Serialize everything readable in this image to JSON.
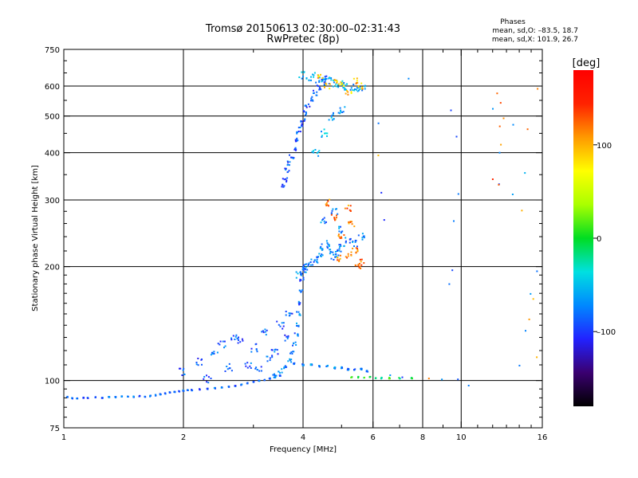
{
  "chart_data": {
    "type": "scatter",
    "title": "Tromsø 20150613 02:30:00–02:31:43",
    "subtitle": "RwPretec (8p)",
    "header": {
      "title": "Phases",
      "line1": "mean, sd,O: –83.5, 18.7",
      "line2": "mean, sd,X: 101.9, 26.7"
    },
    "xlabel": "Frequency [MHz]",
    "ylabel": "Stationary phase Virtual Height [km]",
    "x_scale": "log",
    "y_scale": "log",
    "xlim": [
      1,
      16
    ],
    "ylim": [
      75,
      750
    ],
    "x_ticks": [
      {
        "value": 1,
        "label": "1"
      },
      {
        "value": 2,
        "label": "2"
      },
      {
        "value": 4,
        "label": "4"
      },
      {
        "value": 6,
        "label": "6"
      },
      {
        "value": 8,
        "label": "8"
      },
      {
        "value": 10,
        "label": "10"
      },
      {
        "value": 16,
        "label": "16"
      }
    ],
    "x_minor": [
      3,
      5,
      7,
      9,
      11,
      12,
      13,
      14,
      15
    ],
    "x_grid": [
      2,
      4,
      6,
      8,
      10
    ],
    "y_ticks": [
      {
        "value": 75,
        "label": "75"
      },
      {
        "value": 100,
        "label": "100"
      },
      {
        "value": 200,
        "label": "200"
      },
      {
        "value": 300,
        "label": "300"
      },
      {
        "value": 400,
        "label": "400"
      },
      {
        "value": 500,
        "label": "500"
      },
      {
        "value": 600,
        "label": "600"
      },
      {
        "value": 750,
        "label": "750"
      }
    ],
    "y_grid": [
      100,
      200,
      300,
      400,
      500,
      600
    ],
    "grid": true,
    "colorbar": {
      "label": "[deg]",
      "range": [
        -180,
        180
      ],
      "ticks": [
        {
          "value": 100,
          "label": "100"
        },
        {
          "value": 0,
          "label": "0"
        },
        {
          "value": -100,
          "label": "–100"
        }
      ],
      "stops": [
        "#000000",
        "#3a0070",
        "#2222ff",
        "#0088ff",
        "#00e0e0",
        "#00dd22",
        "#aaff00",
        "#ffff00",
        "#ff9900",
        "#ff2200",
        "#ff0000"
      ]
    },
    "point_groups": [
      {
        "name": "E-layer trace",
        "points": [
          [
            1.02,
            90.5
          ],
          [
            1.05,
            89.8
          ],
          [
            1.08,
            89.6
          ],
          [
            1.12,
            90.0
          ],
          [
            1.15,
            89.9
          ],
          [
            1.2,
            90.3
          ],
          [
            1.25,
            90.1
          ],
          [
            1.3,
            90.5
          ],
          [
            1.35,
            90.4
          ],
          [
            1.4,
            90.8
          ],
          [
            1.45,
            90.5
          ],
          [
            1.5,
            90.6
          ],
          [
            1.55,
            90.9
          ],
          [
            1.6,
            90.6
          ],
          [
            1.65,
            91.0
          ],
          [
            1.7,
            91.4
          ],
          [
            1.75,
            92.0
          ],
          [
            1.8,
            92.4
          ],
          [
            1.85,
            93.1
          ],
          [
            1.9,
            93.3
          ],
          [
            1.95,
            93.6
          ],
          [
            2.0,
            94.0
          ],
          [
            2.05,
            94.2
          ],
          [
            2.1,
            94.3
          ],
          [
            2.2,
            94.8
          ],
          [
            2.3,
            95.0
          ],
          [
            2.4,
            95.4
          ],
          [
            2.5,
            95.8
          ],
          [
            2.6,
            96.3
          ],
          [
            2.7,
            96.8
          ],
          [
            2.8,
            97.5
          ],
          [
            2.9,
            98.5
          ],
          [
            3.0,
            99.2
          ],
          [
            3.1,
            99.8
          ],
          [
            3.2,
            100.4
          ],
          [
            3.3,
            101.2
          ],
          [
            3.4,
            102.0
          ],
          [
            3.5,
            103.0
          ]
        ],
        "phase": -85,
        "count": 5,
        "spread": 0.6
      },
      {
        "name": "rising trace to F layer",
        "points": [
          [
            3.4,
            103
          ],
          [
            3.5,
            106
          ],
          [
            3.6,
            109
          ],
          [
            3.7,
            113
          ],
          [
            3.75,
            118
          ],
          [
            3.8,
            125
          ],
          [
            3.85,
            132
          ],
          [
            3.88,
            140
          ],
          [
            3.9,
            150
          ],
          [
            3.93,
            160
          ],
          [
            3.95,
            172
          ],
          [
            3.97,
            185
          ],
          [
            4.0,
            200
          ]
        ],
        "phase": -80,
        "count": 5,
        "spread": 2.5
      },
      {
        "name": "scattered echoes 2-4 MHz",
        "points": [
          [
            2.0,
            105
          ],
          [
            2.2,
            112
          ],
          [
            2.4,
            118
          ],
          [
            2.5,
            125
          ],
          [
            2.7,
            130
          ],
          [
            2.8,
            128
          ],
          [
            3.0,
            122
          ],
          [
            3.2,
            135
          ],
          [
            3.5,
            140
          ],
          [
            3.7,
            150
          ],
          [
            2.6,
            108
          ],
          [
            3.3,
            115
          ],
          [
            3.6,
            130
          ],
          [
            2.3,
            101
          ],
          [
            2.9,
            110
          ],
          [
            3.1,
            108
          ],
          [
            3.4,
            120
          ]
        ],
        "phase": -88,
        "count": 7,
        "spread": 5
      },
      {
        "name": "echoes near 110 km",
        "points": [
          [
            3.8,
            111
          ],
          [
            4.0,
            110
          ],
          [
            4.2,
            110
          ],
          [
            4.4,
            109
          ],
          [
            4.6,
            109
          ],
          [
            4.8,
            108
          ],
          [
            5.0,
            108
          ],
          [
            5.2,
            107
          ],
          [
            5.4,
            107
          ],
          [
            5.6,
            107
          ],
          [
            5.8,
            106
          ]
        ],
        "phase": -70,
        "count": 5,
        "spread": 1
      },
      {
        "name": "F1 cusp",
        "points": [
          [
            3.9,
            190
          ],
          [
            4.0,
            195
          ],
          [
            4.1,
            200
          ],
          [
            4.2,
            205
          ],
          [
            4.3,
            208
          ],
          [
            4.4,
            215
          ],
          [
            4.5,
            225
          ],
          [
            4.6,
            230
          ],
          [
            4.7,
            220
          ],
          [
            4.8,
            212
          ],
          [
            4.9,
            218
          ],
          [
            5.0,
            225
          ],
          [
            5.2,
            235
          ],
          [
            5.4,
            230
          ],
          [
            5.6,
            240
          ],
          [
            4.5,
            265
          ],
          [
            4.8,
            280
          ],
          [
            5.0,
            250
          ]
        ],
        "phase": -75,
        "count": 7,
        "spread": 4
      },
      {
        "name": "F1 cusp extraordinary",
        "points": [
          [
            4.9,
            210
          ],
          [
            5.2,
            215
          ],
          [
            5.4,
            220
          ],
          [
            5.6,
            205
          ],
          [
            5.0,
            240
          ],
          [
            5.3,
            260
          ],
          [
            4.6,
            295
          ],
          [
            4.8,
            270
          ],
          [
            5.5,
            200
          ],
          [
            5.2,
            285
          ]
        ],
        "phase": 120,
        "count": 7,
        "spread": 4
      },
      {
        "name": "F2 lower trace",
        "points": [
          [
            3.55,
            325
          ],
          [
            3.6,
            340
          ],
          [
            3.65,
            360
          ],
          [
            3.7,
            375
          ],
          [
            3.75,
            390
          ],
          [
            3.8,
            410
          ],
          [
            3.85,
            430
          ],
          [
            3.9,
            450
          ],
          [
            3.95,
            470
          ],
          [
            4.0,
            490
          ],
          [
            4.05,
            510
          ],
          [
            4.1,
            530
          ],
          [
            4.2,
            555
          ],
          [
            4.3,
            575
          ],
          [
            4.4,
            595
          ],
          [
            4.5,
            615
          ],
          [
            4.6,
            630
          ]
        ],
        "phase": -90,
        "count": 6,
        "spread": 3
      },
      {
        "name": "F2 upper cluster",
        "points": [
          [
            4.0,
            640
          ],
          [
            4.2,
            635
          ],
          [
            4.4,
            625
          ],
          [
            4.6,
            618
          ],
          [
            4.8,
            610
          ],
          [
            5.0,
            605
          ],
          [
            5.2,
            600
          ],
          [
            5.4,
            595
          ],
          [
            5.6,
            590
          ],
          [
            4.3,
            400
          ],
          [
            4.5,
            450
          ],
          [
            4.7,
            500
          ],
          [
            5.0,
            520
          ]
        ],
        "phase": -60,
        "count": 8,
        "spread": 5
      },
      {
        "name": "F2 extraordinary",
        "points": [
          [
            4.6,
            600
          ],
          [
            4.8,
            620
          ],
          [
            5.0,
            610
          ],
          [
            5.2,
            580
          ],
          [
            5.4,
            620
          ],
          [
            5.6,
            600
          ],
          [
            4.4,
            640
          ]
        ],
        "phase": 95,
        "count": 6,
        "spread": 4
      },
      {
        "name": "trace near 100 km 5-7.5 MHz",
        "points": [
          [
            5.3,
            102
          ],
          [
            5.5,
            102
          ],
          [
            5.7,
            102
          ],
          [
            5.9,
            102
          ],
          [
            6.1,
            101.5
          ],
          [
            6.3,
            101.5
          ],
          [
            6.6,
            101.5
          ],
          [
            7.0,
            101.5
          ],
          [
            7.5,
            101.5
          ]
        ],
        "phase": -5,
        "count": 4,
        "spread": 0.7
      },
      {
        "name": "sparse high frequency echoes",
        "points": [
          [
            6.2,
            480
          ],
          [
            6.4,
            265
          ],
          [
            6.3,
            315
          ],
          [
            7.4,
            630
          ],
          [
            9.4,
            520
          ],
          [
            9.8,
            310
          ],
          [
            9.7,
            440
          ],
          [
            9.5,
            195
          ],
          [
            8.9,
            101
          ],
          [
            9.8,
            101
          ],
          [
            10.4,
            97
          ],
          [
            9.6,
            265
          ],
          [
            6.6,
            103
          ],
          [
            7.1,
            102
          ],
          [
            12.5,
            400
          ],
          [
            14.5,
            355
          ],
          [
            15.0,
            170
          ],
          [
            13.5,
            310
          ],
          [
            15.5,
            195
          ],
          [
            12.0,
            520
          ],
          [
            12.5,
            330
          ],
          [
            14.0,
            110
          ],
          [
            14.5,
            135
          ],
          [
            13.5,
            475
          ],
          [
            9.3,
            180
          ]
        ],
        "phase": -80,
        "count": 1,
        "spread": 1
      },
      {
        "name": "sparse high frequency x-mode",
        "points": [
          [
            12.3,
            575
          ],
          [
            12.6,
            540
          ],
          [
            12.8,
            495
          ],
          [
            12.5,
            470
          ],
          [
            12.6,
            420
          ],
          [
            14.7,
            460
          ],
          [
            12.4,
            330
          ],
          [
            14.2,
            280
          ],
          [
            15.5,
            588
          ],
          [
            15.5,
            115
          ],
          [
            14.9,
            145
          ],
          [
            15.2,
            165
          ],
          [
            12.0,
            340
          ],
          [
            6.2,
            395
          ],
          [
            8.3,
            101
          ]
        ],
        "phase": 120,
        "count": 1,
        "spread": 1
      }
    ]
  }
}
